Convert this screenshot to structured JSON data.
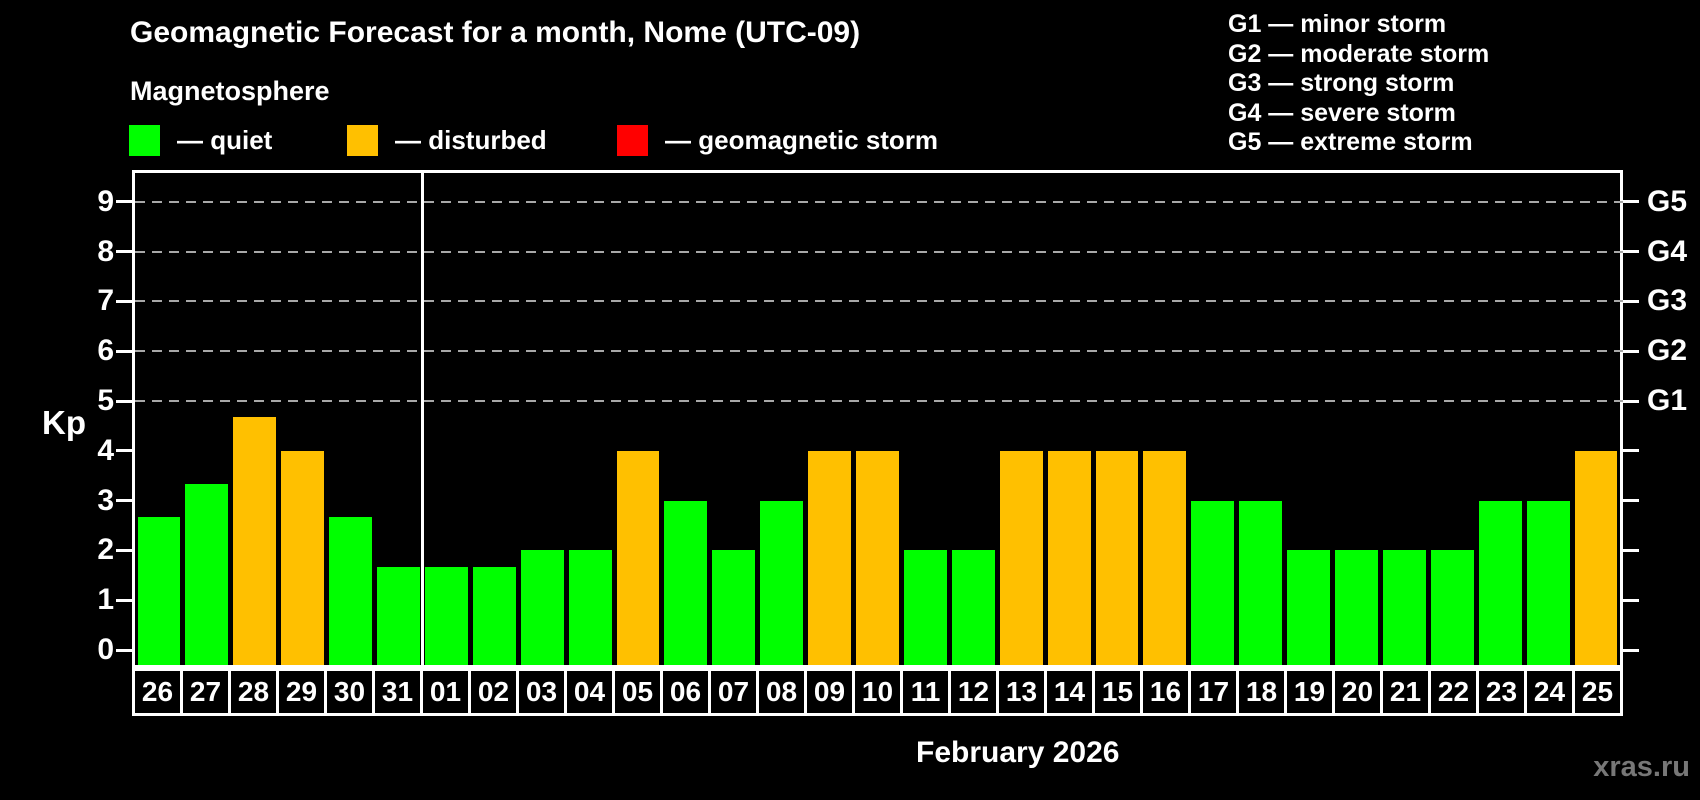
{
  "title": "Geomagnetic Forecast for a month, Nome (UTC-09)",
  "subtitle": "Magnetosphere",
  "legend": {
    "items": [
      {
        "key": "quiet",
        "label": "— quiet",
        "color": "#00ff00"
      },
      {
        "key": "disturbed",
        "label": "— disturbed",
        "color": "#ffc000"
      },
      {
        "key": "storm",
        "label": "— geomagnetic storm",
        "color": "#ff0000"
      }
    ]
  },
  "storm_scale": {
    "items": [
      "G1 — minor storm",
      "G2 — moderate storm",
      "G3 — strong storm",
      "G4 — severe storm",
      "G5 — extreme storm"
    ]
  },
  "axis": {
    "y_label": "Kp"
  },
  "footer": {
    "caption": "February 2026",
    "watermark": "xras.ru"
  },
  "chart_data": {
    "type": "bar",
    "title": "Geomagnetic Forecast for a month, Nome (UTC-09)",
    "ylabel": "Kp",
    "xlabel": "February 2026",
    "ylim": [
      0,
      9
    ],
    "y_ticks": [
      0,
      1,
      2,
      3,
      4,
      5,
      6,
      7,
      8,
      9
    ],
    "gridlines_at": [
      5,
      6,
      7,
      8,
      9
    ],
    "right_axis_labels": [
      {
        "kp": 5,
        "label": "G1"
      },
      {
        "kp": 6,
        "label": "G2"
      },
      {
        "kp": 7,
        "label": "G3"
      },
      {
        "kp": 8,
        "label": "G4"
      },
      {
        "kp": 9,
        "label": "G5"
      }
    ],
    "categories": [
      "26",
      "27",
      "28",
      "29",
      "30",
      "31",
      "01",
      "02",
      "03",
      "04",
      "05",
      "06",
      "07",
      "08",
      "09",
      "10",
      "11",
      "12",
      "13",
      "14",
      "15",
      "16",
      "17",
      "18",
      "19",
      "20",
      "21",
      "22",
      "23",
      "24",
      "25"
    ],
    "values": [
      2.67,
      3.33,
      4.67,
      4,
      2.67,
      1.67,
      1.67,
      1.67,
      2,
      2,
      4,
      3,
      2,
      3,
      4,
      4,
      2,
      2,
      4,
      4,
      4,
      4,
      3,
      3,
      2,
      2,
      2,
      2,
      3,
      3,
      4
    ],
    "statuses": [
      "quiet",
      "quiet",
      "disturbed",
      "disturbed",
      "quiet",
      "quiet",
      "quiet",
      "quiet",
      "quiet",
      "quiet",
      "disturbed",
      "quiet",
      "quiet",
      "quiet",
      "disturbed",
      "disturbed",
      "quiet",
      "quiet",
      "disturbed",
      "disturbed",
      "disturbed",
      "disturbed",
      "quiet",
      "quiet",
      "quiet",
      "quiet",
      "quiet",
      "quiet",
      "quiet",
      "quiet",
      "disturbed"
    ],
    "status_colors": {
      "quiet": "#00ff00",
      "disturbed": "#ffc000",
      "storm": "#ff0000"
    },
    "month_boundary_after_index": 5,
    "legend_position": "top-left",
    "grid": "dashed horizontal at storm levels only"
  }
}
